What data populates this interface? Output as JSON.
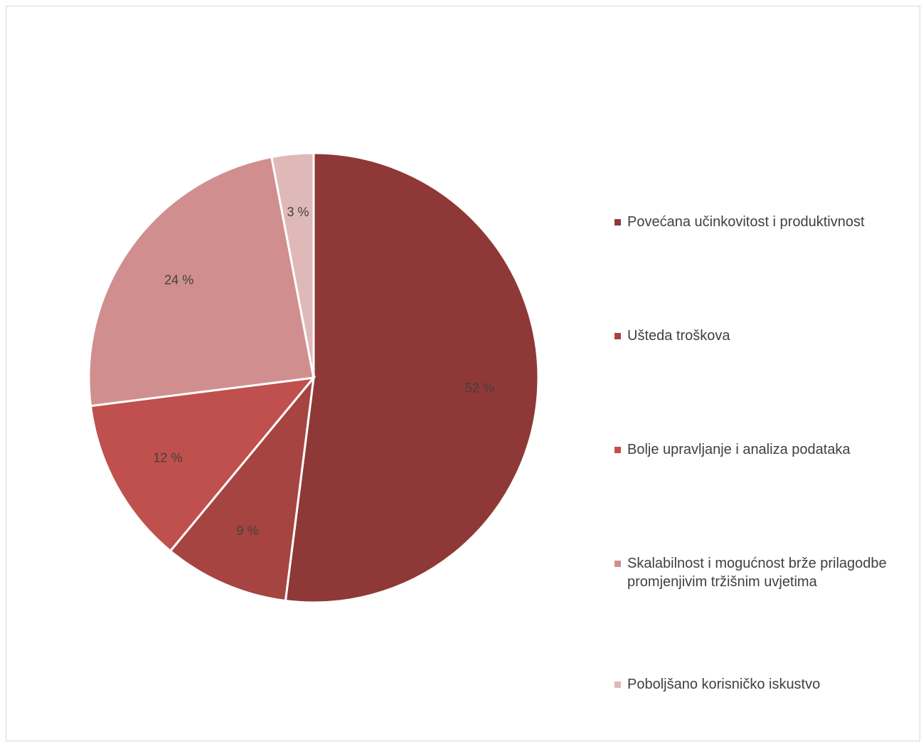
{
  "chart_data": {
    "type": "pie",
    "title": "",
    "slices": [
      {
        "label": "Povećana učinkovitost i produktivnost",
        "value": 52,
        "display": "52 %",
        "color": "#8e3937"
      },
      {
        "label": "Ušteda troškova",
        "value": 9,
        "display": "9 %",
        "color": "#a64442"
      },
      {
        "label": "Bolje upravljanje i analiza podataka",
        "value": 12,
        "display": "12 %",
        "color": "#c0504d"
      },
      {
        "label": "Skalabilnost i mogućnost brže prilagodbe promjenjivim tržišnim uvjetima",
        "value": 24,
        "display": "24 %",
        "color": "#d08f8e"
      },
      {
        "label": "Poboljšano korisničko iskustvo",
        "value": 3,
        "display": "3 %",
        "color": "#dfb9b8"
      }
    ],
    "legend_position": "right"
  }
}
